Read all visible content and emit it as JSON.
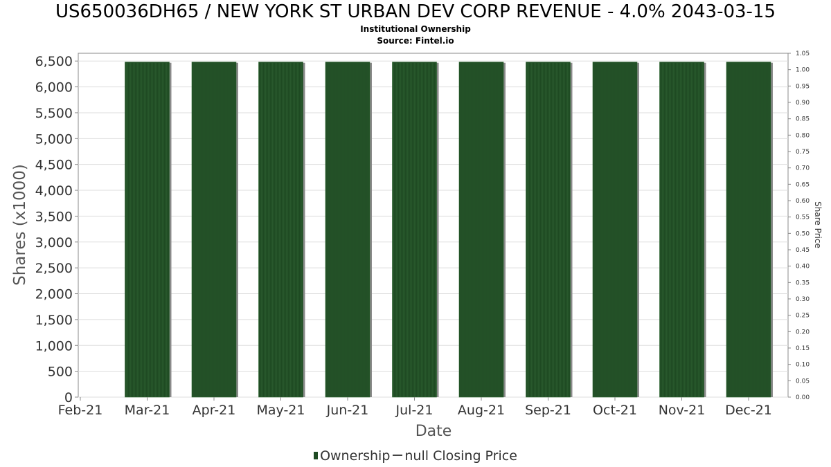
{
  "title": "US650036DH65 / NEW YORK ST URBAN DEV CORP REVENUE - 4.0% 2043-03-15",
  "subtitle_lines": [
    "Institutional Ownership",
    "Source: Fintel.io"
  ],
  "legend": {
    "ownership_label": "Ownership",
    "price_label": "null Closing Price"
  },
  "colors": {
    "bar": "#1e4a22",
    "bar_shadow": "#8a8a8a",
    "grid": "#dddddd",
    "axis": "#888888"
  },
  "chart_data": {
    "type": "bar",
    "xlabel": "Date",
    "ylabel": "Shares (x1000)",
    "y2label": "Share Price",
    "categories": [
      "Mar-21",
      "Apr-21",
      "May-21",
      "Jun-21",
      "Jul-21",
      "Aug-21",
      "Sep-21",
      "Oct-21",
      "Nov-21",
      "Dec-21"
    ],
    "x_ticks": [
      "Feb-21",
      "Mar-21",
      "Apr-21",
      "May-21",
      "Jun-21",
      "Jul-21",
      "Aug-21",
      "Sep-21",
      "Oct-21",
      "Nov-21",
      "Dec-21"
    ],
    "series": [
      {
        "name": "Ownership",
        "values": [
          6480,
          6480,
          6480,
          6480,
          6480,
          6480,
          6480,
          6480,
          6480,
          6480
        ]
      }
    ],
    "ylim": [
      0,
      6650
    ],
    "y_ticks": [
      "0",
      "500",
      "1,000",
      "1,500",
      "2,000",
      "2,500",
      "3,000",
      "3,500",
      "4,000",
      "4,500",
      "5,000",
      "5,500",
      "6,000",
      "6,500"
    ],
    "y2lim": [
      0,
      1.05
    ],
    "y2_ticks": [
      "0.00",
      "0.05",
      "0.10",
      "0.15",
      "0.20",
      "0.25",
      "0.30",
      "0.35",
      "0.40",
      "0.45",
      "0.50",
      "0.55",
      "0.60",
      "0.65",
      "0.70",
      "0.75",
      "0.80",
      "0.85",
      "0.90",
      "0.95",
      "1.00",
      "1.05"
    ],
    "grid": true,
    "legend_position": "bottom-center"
  }
}
